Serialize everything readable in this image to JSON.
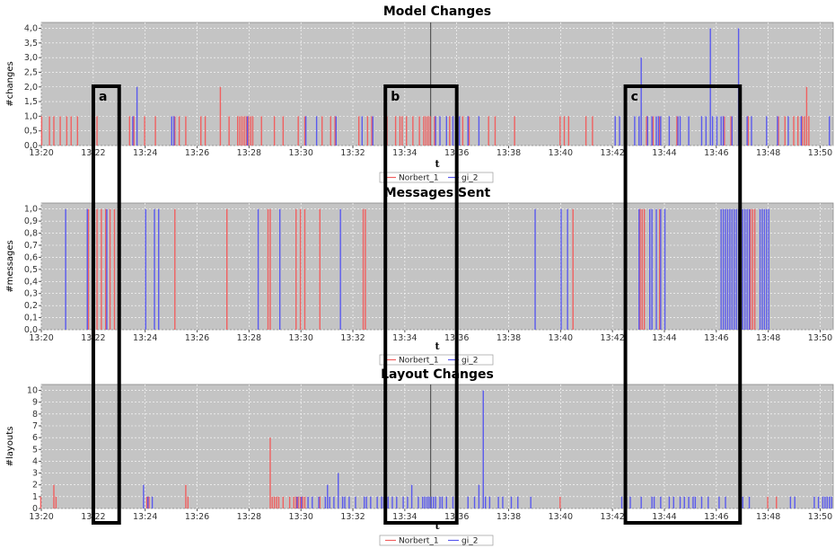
{
  "chart_data": [
    {
      "type": "bar",
      "title": "Model Changes",
      "xlabel": "t",
      "ylabel": "#changes",
      "x_ticks": [
        "13:20",
        "13:22",
        "13:24",
        "13:26",
        "13:28",
        "13:30",
        "13:32",
        "13:34",
        "13:36",
        "13:38",
        "13:40",
        "13:42",
        "13:44",
        "13:46",
        "13:48",
        "13:50"
      ],
      "y_ticks": [
        "0,0",
        "0,5",
        "1,0",
        "1,5",
        "2,0",
        "2,5",
        "3,0",
        "3,5",
        "4,0"
      ],
      "xlim": [
        13.3333,
        13.8417
      ],
      "ylim": [
        0,
        4.2
      ],
      "grid": true,
      "legend_position": "bottom-center",
      "marker_time": 13.5833,
      "series": [
        {
          "name": "Norbert_1",
          "color": "#f06060",
          "x": [
            13.3339,
            13.3389,
            13.3417,
            13.3458,
            13.35,
            13.3528,
            13.3569,
            13.3667,
            13.3694,
            13.3903,
            13.3931,
            13.4,
            13.4069,
            13.4194,
            13.4222,
            13.4264,
            13.4361,
            13.4389,
            13.4486,
            13.4542,
            13.4597,
            13.4611,
            13.4625,
            13.4639,
            13.4653,
            13.4667,
            13.4681,
            13.4694,
            13.475,
            13.4833,
            13.4889,
            13.4986,
            13.5028,
            13.5139,
            13.5194,
            13.5222,
            13.5375,
            13.5431,
            13.5458,
            13.5556,
            13.5611,
            13.5639,
            13.5653,
            13.5681,
            13.5722,
            13.5764,
            13.5792,
            13.5806,
            13.5819,
            13.5833,
            13.5861,
            13.5958,
            13.6042,
            13.6083,
            13.6208,
            13.625,
            13.6375,
            13.6667,
            13.6694,
            13.6722,
            13.6833,
            13.6875,
            13.7222,
            13.7264,
            13.7306,
            13.7417,
            13.7722,
            13.7764,
            13.7875,
            13.8069,
            13.8111,
            13.8167,
            13.8194,
            13.8222,
            13.8236,
            13.825,
            13.8264
          ],
          "values": [
            1,
            1,
            1,
            1,
            1,
            1,
            1,
            1,
            1,
            1,
            1,
            1,
            1,
            1,
            1,
            1,
            1,
            1,
            2,
            1,
            1,
            1,
            1,
            1,
            1,
            1,
            1,
            1,
            1,
            1,
            1,
            1,
            1,
            1,
            1,
            1,
            1,
            1,
            1,
            1,
            1,
            1,
            1,
            1,
            1,
            1,
            1,
            1,
            1,
            1,
            1,
            1,
            1,
            1,
            1,
            1,
            1,
            1,
            1,
            1,
            1,
            1,
            1,
            1,
            1,
            1,
            1,
            1,
            1,
            1,
            1,
            1,
            1,
            1,
            1,
            2,
            1
          ]
        },
        {
          "name": "gi_2",
          "color": "#5a5aee",
          "x": [
            13.3917,
            13.3944,
            13.4167,
            13.4181,
            13.4653,
            13.5028,
            13.5097,
            13.5222,
            13.5389,
            13.5458,
            13.5861,
            13.5889,
            13.5931,
            13.5972,
            13.6014,
            13.6069,
            13.6139,
            13.7014,
            13.7042,
            13.7083,
            13.7139,
            13.7167,
            13.7181,
            13.7222,
            13.725,
            13.7278,
            13.7292,
            13.7306,
            13.7361,
            13.7417,
            13.7431,
            13.7486,
            13.7569,
            13.7597,
            13.7625,
            13.7639,
            13.7667,
            13.7694,
            13.7708,
            13.7764,
            13.7806,
            13.7861,
            13.7889,
            13.7986,
            13.8056,
            13.8125,
            13.8208,
            13.8389
          ],
          "values": [
            1,
            2,
            1,
            1,
            1,
            1,
            1,
            1,
            1,
            1,
            1,
            1,
            1,
            1,
            1,
            1,
            1,
            1,
            1,
            1,
            1,
            1,
            3,
            1,
            1,
            1,
            1,
            1,
            1,
            1,
            1,
            1,
            1,
            1,
            4,
            1,
            1,
            1,
            1,
            1,
            4,
            1,
            1,
            1,
            1,
            1,
            1,
            1
          ]
        }
      ]
    },
    {
      "type": "bar",
      "title": "Messages Sent",
      "xlabel": "t",
      "ylabel": "#messages",
      "x_ticks": [
        "13:20",
        "13:22",
        "13:24",
        "13:26",
        "13:28",
        "13:30",
        "13:32",
        "13:34",
        "13:36",
        "13:38",
        "13:40",
        "13:42",
        "13:44",
        "13:46",
        "13:48",
        "13:50"
      ],
      "y_ticks": [
        "0,0",
        "0,1",
        "0,2",
        "0,3",
        "0,4",
        "0,5",
        "0,6",
        "0,7",
        "0,8",
        "0,9",
        "1,0"
      ],
      "xlim": [
        13.3333,
        13.8417
      ],
      "ylim": [
        0,
        1.05
      ],
      "grid": true,
      "legend_position": "bottom-center",
      "series": [
        {
          "name": "Norbert_1",
          "color": "#f06060",
          "x": [
            13.3639,
            13.3694,
            13.3722,
            13.375,
            13.3778,
            13.3806,
            13.4194,
            13.4528,
            13.4792,
            13.4806,
            13.4972,
            13.5,
            13.5028,
            13.5125,
            13.5403,
            13.5417,
            13.675,
            13.7181,
            13.7194,
            13.7208,
            13.7306,
            13.7889,
            13.7903,
            13.7917
          ],
          "values": [
            1,
            1,
            1,
            1,
            1,
            1,
            1,
            1,
            1,
            1,
            1,
            1,
            1,
            1,
            1,
            1,
            1,
            1,
            1,
            1,
            1,
            1,
            1,
            1
          ]
        },
        {
          "name": "gi_2",
          "color": "#5a5aee",
          "x": [
            13.3486,
            13.3625,
            13.375,
            13.4,
            13.4056,
            13.4083,
            13.4722,
            13.4861,
            13.525,
            13.65,
            13.6667,
            13.6708,
            13.7167,
            13.7236,
            13.725,
            13.7278,
            13.7306,
            13.7333,
            13.7694,
            13.7708,
            13.7722,
            13.7736,
            13.775,
            13.7764,
            13.7778,
            13.7792,
            13.7806,
            13.7819,
            13.7833,
            13.7847,
            13.7861,
            13.7875,
            13.7944,
            13.7958,
            13.7972,
            13.7986,
            13.8
          ],
          "values": [
            1,
            1,
            1,
            1,
            1,
            1,
            1,
            1,
            1,
            1,
            1,
            1,
            1,
            1,
            1,
            1,
            1,
            1,
            1,
            1,
            1,
            1,
            1,
            1,
            1,
            1,
            1,
            1,
            1,
            1,
            1,
            1,
            1,
            1,
            1,
            1,
            1
          ]
        }
      ]
    },
    {
      "type": "bar",
      "title": "Layout Changes",
      "xlabel": "t",
      "ylabel": "#layouts",
      "x_ticks": [
        "13:20",
        "13:22",
        "13:24",
        "13:26",
        "13:28",
        "13:30",
        "13:32",
        "13:34",
        "13:36",
        "13:38",
        "13:40",
        "13:42",
        "13:44",
        "13:46",
        "13:48",
        "13:50"
      ],
      "y_ticks": [
        "0",
        "1",
        "2",
        "3",
        "4",
        "5",
        "6",
        "7",
        "8",
        "9",
        "10"
      ],
      "xlim": [
        13.3333,
        13.8417
      ],
      "ylim": [
        0,
        10.5
      ],
      "grid": true,
      "legend_position": "bottom-center",
      "marker_time": 13.5833,
      "series": [
        {
          "name": "Norbert_1",
          "color": "#f06060",
          "x": [
            13.3333,
            13.3417,
            13.3431,
            13.4014,
            13.4028,
            13.4264,
            13.4278,
            13.4806,
            13.4819,
            13.4833,
            13.4847,
            13.4861,
            13.4889,
            13.4931,
            13.4958,
            13.4972,
            13.4986,
            13.5,
            13.5014,
            13.5028,
            13.5125,
            13.6667,
            13.8,
            13.8056
          ],
          "values": [
            1,
            2,
            1,
            1,
            1,
            2,
            1,
            6,
            1,
            1,
            1,
            1,
            1,
            1,
            1,
            1,
            1,
            1,
            1,
            1,
            1,
            1,
            1,
            1
          ]
        },
        {
          "name": "gi_2",
          "color": "#5a5aee",
          "x": [
            13.3986,
            13.4014,
            13.4042,
            13.4972,
            13.5,
            13.5042,
            13.5069,
            13.5111,
            13.5153,
            13.5167,
            13.5181,
            13.5208,
            13.5236,
            13.5264,
            13.5278,
            13.5306,
            13.5347,
            13.5403,
            13.5417,
            13.5444,
            13.5486,
            13.5514,
            13.5528,
            13.5556,
            13.5583,
            13.5611,
            13.5653,
            13.5681,
            13.5708,
            13.575,
            13.5778,
            13.5792,
            13.5806,
            13.5819,
            13.5833,
            13.5847,
            13.5861,
            13.5889,
            13.5903,
            13.5931,
            13.5972,
            13.6,
            13.6069,
            13.6111,
            13.6139,
            13.6167,
            13.6181,
            13.6208,
            13.6264,
            13.6292,
            13.6347,
            13.6389,
            13.6472,
            13.7056,
            13.7111,
            13.7181,
            13.725,
            13.7264,
            13.7306,
            13.7361,
            13.7389,
            13.7431,
            13.7458,
            13.7486,
            13.7514,
            13.7528,
            13.7569,
            13.7611,
            13.7681,
            13.7722,
            13.7833,
            13.7875,
            13.8139,
            13.8167,
            13.8292,
            13.8319,
            13.8347,
            13.8361,
            13.8375,
            13.8389,
            13.8403
          ],
          "values": [
            2,
            1,
            1,
            1,
            1,
            1,
            1,
            1,
            1,
            2,
            1,
            1,
            3,
            1,
            1,
            1,
            1,
            1,
            1,
            1,
            1,
            1,
            1,
            1,
            1,
            1,
            1,
            1,
            2,
            1,
            1,
            1,
            1,
            1,
            1,
            1,
            1,
            1,
            1,
            1,
            1,
            1,
            1,
            1,
            2,
            10,
            1,
            1,
            1,
            1,
            1,
            1,
            1,
            1,
            1,
            1,
            1,
            1,
            1,
            1,
            1,
            1,
            1,
            1,
            1,
            1,
            1,
            1,
            1,
            1,
            1,
            1,
            1,
            1,
            1,
            1,
            1,
            1,
            1,
            1,
            1
          ]
        }
      ]
    }
  ],
  "annotations": {
    "box_labels": [
      "a",
      "b",
      "c"
    ],
    "box_ranges": [
      [
        13.3667,
        13.3833
      ],
      [
        13.5542,
        13.6
      ],
      [
        13.7083,
        13.7819
      ]
    ]
  }
}
